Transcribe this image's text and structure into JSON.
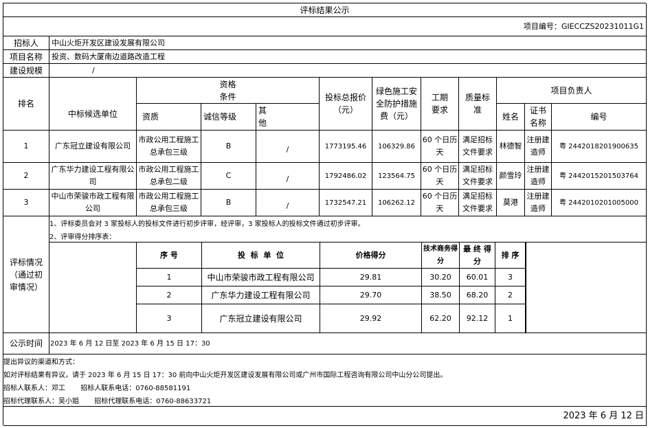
{
  "title": "评标结果公示",
  "project_no": "项目编号：GIECCZS20231011G1",
  "tenderer": {
    "label": "招标人",
    "value": "中山火炬开发区建设发展有限公司"
  },
  "project_name": {
    "label": "项目名称",
    "value": "投资、数码大厦南边道路改造工程"
  },
  "scale": {
    "label": "建设规模",
    "value": "/"
  },
  "headers": {
    "rank": "排名",
    "unit": "中标候选单位",
    "qual_cond": "资格\n条件",
    "qualification": "资质",
    "credit": "诚信等级",
    "other": "其\n他",
    "price": "投标总报价（元）",
    "green_fee": "绿色施工安全防护措施费（元）",
    "period": "工期要求",
    "quality": "质量标准",
    "manager": "项目负责人",
    "name": "姓名",
    "cert": "证书名称",
    "cert_no": "编号"
  },
  "rows": [
    {
      "rank": "1",
      "unit": "广东冠立建设有限公司",
      "qualification": "市政公用工程施工总承包三级",
      "credit": "B",
      "other": "/",
      "price": "1773195.46",
      "green_fee": "106329.86",
      "period": "60 个日历天",
      "quality": "满足招标文件要求",
      "name": "林德智",
      "cert": "注册建造师",
      "cert_no": "粤 2442018201900635"
    },
    {
      "rank": "2",
      "unit": "广东华力建设工程有限公司",
      "qualification": "市政公用工程施工总承包二级",
      "credit": "C",
      "other": "/",
      "price": "1792486.02",
      "green_fee": "123564.75",
      "period": "60 个日历天",
      "quality": "满足招标文件要求",
      "name": "颜雪玲",
      "cert": "注册建造师",
      "cert_no": "粤 2442015201503764"
    },
    {
      "rank": "3",
      "unit": "中山市荣骏市政工程有限公司",
      "qualification": "市政公用工程施工总承包三级",
      "credit": "B",
      "other": "/",
      "price": "1732547.21",
      "green_fee": "106262.12",
      "period": "60 个日历天",
      "quality": "满足招标文件要求",
      "name": "莫港",
      "cert": "注册建造师",
      "cert_no": "粤 2442010201005000"
    }
  ],
  "evaluation": {
    "label": "评标情况（通过初审情况）",
    "line1": "1、评标委员会对 3 家投标人的投标文件进行初步评审，经评审，3 家投标人的投标文件通过初步评审。",
    "line2": "2、评审得分排序表：",
    "headers": {
      "no": "序 号",
      "bidder": "投  标  单  位",
      "price_score": "价格得分",
      "tech_score": "技术商务得分",
      "final_score": "最 终 得 分",
      "rank": "排 序"
    },
    "rows": [
      {
        "no": "1",
        "bidder": "中山市荣骏市政工程有限公司",
        "price_score": "29.81",
        "tech_score": "30.20",
        "final_score": "60.01",
        "rank": "3"
      },
      {
        "no": "2",
        "bidder": "广东华力建设工程有限公司",
        "price_score": "29.70",
        "tech_score": "38.50",
        "final_score": "68.20",
        "rank": "2"
      },
      {
        "no": "3",
        "bidder": "广东冠立建设有限公司",
        "price_score": "29.92",
        "tech_score": "62.20",
        "final_score": "92.12",
        "rank": "1"
      }
    ]
  },
  "publicity": {
    "label": "公示时间",
    "value": "2023 年 6 月 12 日至 2023 年 6 月 15 日 17：30"
  },
  "objection": {
    "title": "提出异议的渠道和方式：",
    "text": "如对评标结果有异议，请于 2023 年 6 月 15 日 17：30  前向中山火炬开发区建设发展有限公司或广州市国际工程咨询有限公司中山分公司提出。",
    "tenderer_contact": "招标人联系人：邓工       招标人联系电话：0760-88581191",
    "agent_contact": "招标代理联系人：吴小姐       招标代理联系电话：0760-88633721"
  },
  "date": "2023 年 6 月 12 日"
}
